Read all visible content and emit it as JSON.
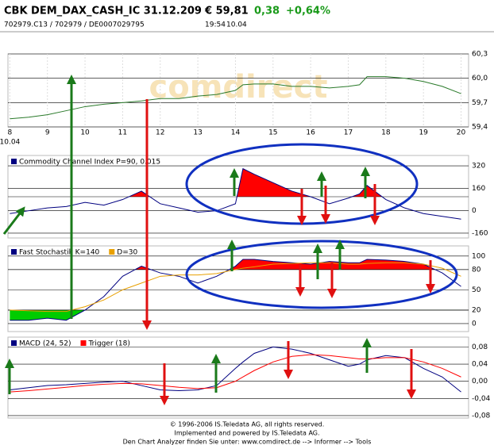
{
  "header": {
    "title": "CBK DEM_DAX_CASH_IC 31.12.209",
    "price": "€ 59,81",
    "change": "0,38",
    "change_pct": "+0,64%",
    "ids": "702979.C13  /  702979  /  DE0007029795",
    "time": "19:54",
    "date": "10.04",
    "watermark": "comdirect"
  },
  "chart_data": [
    {
      "type": "line",
      "x": [
        8,
        8.5,
        9,
        9.5,
        10,
        10.5,
        11,
        11.5,
        12,
        12.5,
        13,
        13.5,
        14,
        14.2,
        14.5,
        15,
        15.5,
        16,
        16.5,
        17,
        17.3,
        17.5,
        18,
        18.5,
        19,
        19.5,
        20
      ],
      "xlim": [
        7.95,
        20.2
      ],
      "xticks": [
        8,
        9,
        10,
        11,
        12,
        13,
        14,
        15,
        16,
        17,
        18,
        19,
        20
      ],
      "x_sublabel": "10.04",
      "ylim": [
        59.4,
        60.3
      ],
      "yticks": [
        {
          "value": 60.3,
          "label": "60,3"
        },
        {
          "value": 60.0,
          "label": "60,0"
        },
        {
          "value": 59.7,
          "label": "59,7"
        },
        {
          "value": 59.4,
          "label": "59,4"
        }
      ],
      "series": [
        {
          "color": "#2a7a2a",
          "values": [
            59.5,
            59.52,
            59.55,
            59.6,
            59.65,
            59.68,
            59.7,
            59.72,
            59.75,
            59.75,
            59.78,
            59.8,
            59.85,
            59.92,
            59.93,
            59.93,
            59.9,
            59.9,
            59.88,
            59.9,
            59.92,
            60.02,
            60.02,
            60.0,
            59.96,
            59.9,
            59.81
          ]
        }
      ]
    },
    {
      "type": "line",
      "x": [
        8,
        8.5,
        9,
        9.5,
        10,
        10.5,
        11,
        11.5,
        12,
        12.5,
        13,
        13.5,
        14,
        14.2,
        14.5,
        15,
        15.5,
        16,
        16.5,
        17,
        17.3,
        17.5,
        18,
        18.5,
        19,
        19.5,
        20
      ],
      "xlim": [
        7.95,
        20.2
      ],
      "ylim": [
        -194,
        394
      ],
      "yticks": [
        320,
        160,
        0,
        -160
      ],
      "fill_above": {
        "value": 100,
        "color": "#ff0000"
      },
      "series": [
        {
          "name": "Commodity Channel Index P=90, 0.015",
          "color": "#000080",
          "values": [
            -20,
            0,
            20,
            30,
            60,
            40,
            80,
            140,
            50,
            20,
            -10,
            0,
            50,
            300,
            260,
            200,
            140,
            100,
            50,
            90,
            120,
            180,
            80,
            20,
            -20,
            -40,
            -60
          ]
        }
      ]
    },
    {
      "type": "line",
      "x": [
        8,
        8.5,
        9,
        9.5,
        10,
        10.5,
        11,
        11.5,
        12,
        12.5,
        13,
        13.5,
        14,
        14.2,
        14.5,
        15,
        15.5,
        16,
        16.5,
        17,
        17.3,
        17.5,
        18,
        18.5,
        19,
        19.5,
        20
      ],
      "xlim": [
        7.95,
        20.2
      ],
      "ylim": [
        -11.8,
        115
      ],
      "yticks": [
        100,
        80,
        50,
        20,
        0
      ],
      "fill_above": {
        "value": 80,
        "color": "#ff0000"
      },
      "fill_below": {
        "value": 20,
        "color": "#00cc00"
      },
      "series": [
        {
          "name": "Fast Stochastik K=140",
          "color": "#000080",
          "values": [
            5,
            5,
            8,
            5,
            20,
            40,
            70,
            85,
            75,
            70,
            60,
            70,
            85,
            95,
            95,
            92,
            90,
            88,
            92,
            90,
            90,
            95,
            94,
            92,
            88,
            75,
            55
          ]
        },
        {
          "name": "D=30",
          "color": "#e8a000",
          "values": [
            20,
            19,
            18,
            18,
            25,
            35,
            50,
            60,
            70,
            72,
            72,
            74,
            80,
            82,
            84,
            88,
            89,
            90,
            90,
            88,
            88,
            89,
            90,
            90,
            88,
            82,
            70
          ]
        }
      ]
    },
    {
      "type": "line",
      "x": [
        8,
        8.5,
        9,
        9.5,
        10,
        10.5,
        11,
        11.5,
        12,
        12.5,
        13,
        13.5,
        14,
        14.2,
        14.5,
        15,
        15.5,
        16,
        16.5,
        17,
        17.3,
        17.5,
        18,
        18.5,
        19,
        19.5,
        20
      ],
      "xlim": [
        7.95,
        20.2
      ],
      "ylim": [
        -0.0857,
        0.1029
      ],
      "yticks": [
        {
          "value": 0.08,
          "label": "0,08"
        },
        {
          "value": 0.04,
          "label": "0,04"
        },
        {
          "value": 0,
          "label": "0,00"
        },
        {
          "value": -0.04,
          "label": "-0,04"
        },
        {
          "value": -0.08,
          "label": "-0,08"
        }
      ],
      "series": [
        {
          "name": "MACD (24, 52)",
          "color": "#000080",
          "values": [
            -0.02,
            -0.015,
            -0.01,
            -0.008,
            -0.005,
            -0.002,
            0.0,
            -0.01,
            -0.02,
            -0.022,
            -0.02,
            -0.01,
            0.03,
            0.045,
            0.065,
            0.08,
            0.075,
            0.065,
            0.05,
            0.035,
            0.04,
            0.05,
            0.06,
            0.055,
            0.03,
            0.01,
            -0.025
          ]
        },
        {
          "name": "Trigger (18)",
          "color": "#ff0000",
          "values": [
            -0.025,
            -0.022,
            -0.018,
            -0.014,
            -0.01,
            -0.007,
            -0.005,
            -0.006,
            -0.01,
            -0.014,
            -0.017,
            -0.015,
            0.0,
            0.01,
            0.025,
            0.045,
            0.058,
            0.062,
            0.06,
            0.055,
            0.052,
            0.052,
            0.055,
            0.055,
            0.045,
            0.03,
            0.01
          ]
        }
      ]
    }
  ],
  "footer": [
    "© 1996-2006 IS.Teledata AG, all rights reserved.",
    "Implemented and powered by IS.Teledata AG.",
    "Den Chart Analyzer finden Sie unter: www.comdirect.de --> Informer --> Tools"
  ]
}
